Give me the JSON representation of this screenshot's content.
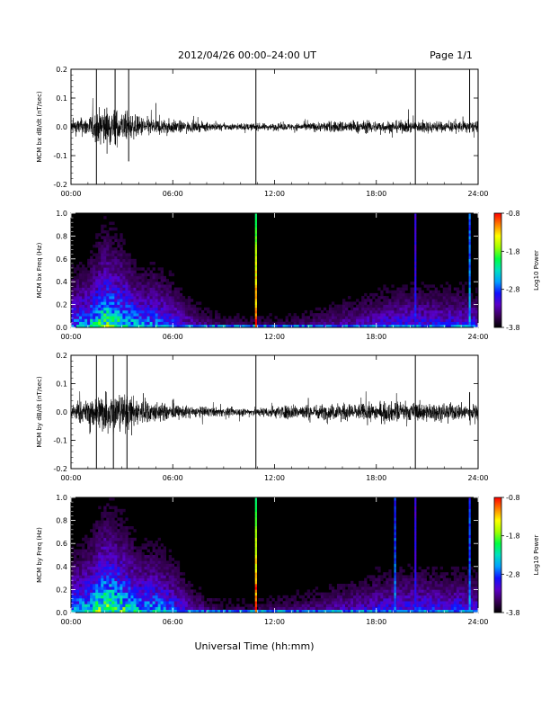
{
  "header": {
    "title": "2012/04/26  00:00–24:00 UT",
    "page": "Page 1/1"
  },
  "xlabel": "Universal Time (hh:mm)",
  "colorbar_colors": [
    "#000000",
    "#3a005a",
    "#5a00c8",
    "#1010ff",
    "#00a0ff",
    "#00e0c0",
    "#00ff40",
    "#a0ff00",
    "#ffff00",
    "#ff8000",
    "#ff0000"
  ],
  "chart_data": [
    {
      "type": "line",
      "ylabel": "MCM bx dB/dt (nT/sec)",
      "x_ticks": [
        "00:00",
        "06:00",
        "12:00",
        "18:00",
        "24:00"
      ],
      "y_ticks": [
        "-0.2",
        "-0.1",
        "0.0",
        "0.1",
        "0.2"
      ],
      "ylim": [
        -0.2,
        0.2
      ],
      "xlim_hours": [
        0,
        24
      ],
      "envelope_hours": [
        0,
        1,
        2,
        3,
        4,
        5,
        6,
        7,
        8,
        9,
        10,
        11,
        12,
        13,
        14,
        15,
        16,
        17,
        18,
        19,
        20,
        21,
        22,
        23,
        24
      ],
      "envelope_amplitude": [
        0.04,
        0.06,
        0.12,
        0.09,
        0.06,
        0.05,
        0.04,
        0.03,
        0.025,
        0.02,
        0.02,
        0.02,
        0.02,
        0.02,
        0.025,
        0.03,
        0.035,
        0.035,
        0.035,
        0.035,
        0.035,
        0.035,
        0.03,
        0.035,
        0.03
      ],
      "spikes": [
        {
          "t": 1.5,
          "ymin": -0.2,
          "ymax": 0.2
        },
        {
          "t": 2.6,
          "ymin": -0.06,
          "ymax": 0.2
        },
        {
          "t": 3.4,
          "ymin": -0.12,
          "ymax": 0.2
        },
        {
          "t": 10.9,
          "ymin": -0.2,
          "ymax": 0.2
        },
        {
          "t": 20.3,
          "ymin": -0.2,
          "ymax": 0.2
        },
        {
          "t": 23.5,
          "ymin": -0.02,
          "ymax": 0.2
        }
      ]
    },
    {
      "type": "heatmap",
      "ylabel": "MCM bx Freq (Hz)",
      "x_ticks": [
        "00:00",
        "06:00",
        "12:00",
        "18:00",
        "24:00"
      ],
      "y_ticks": [
        "0.0",
        "0.2",
        "0.4",
        "0.6",
        "0.8",
        "1.0"
      ],
      "ylim": [
        0,
        1.0
      ],
      "xlim_hours": [
        0,
        24
      ],
      "colorbar": {
        "label": "Log10 Power",
        "ticks": [
          "-0.8",
          "-1.8",
          "-2.8",
          "-3.8"
        ],
        "range": [
          -3.8,
          -0.8
        ]
      },
      "activity_hours": [
        0,
        1,
        2,
        3,
        4,
        5,
        6,
        7,
        8,
        9,
        10,
        11,
        12,
        13,
        14,
        15,
        16,
        17,
        18,
        19,
        20,
        21,
        22,
        23,
        24
      ],
      "activity_level": [
        0.5,
        0.6,
        0.85,
        0.75,
        0.55,
        0.55,
        0.45,
        0.3,
        0.2,
        0.15,
        0.15,
        0.15,
        0.15,
        0.15,
        0.18,
        0.22,
        0.28,
        0.3,
        0.35,
        0.38,
        0.4,
        0.4,
        0.38,
        0.4,
        0.35
      ],
      "vertical_lines": [
        {
          "t": 10.9,
          "power": -0.8
        },
        {
          "t": 20.3,
          "power": -2.9
        },
        {
          "t": 23.5,
          "power": -2.5
        }
      ]
    },
    {
      "type": "line",
      "ylabel": "MCM by dB/dt (nT/sec)",
      "x_ticks": [
        "00:00",
        "06:00",
        "12:00",
        "18:00",
        "24:00"
      ],
      "y_ticks": [
        "-0.2",
        "-0.1",
        "0.0",
        "0.1",
        "0.2"
      ],
      "ylim": [
        -0.2,
        0.2
      ],
      "xlim_hours": [
        0,
        24
      ],
      "envelope_hours": [
        0,
        1,
        2,
        3,
        4,
        5,
        6,
        7,
        8,
        9,
        10,
        11,
        12,
        13,
        14,
        15,
        16,
        17,
        18,
        19,
        20,
        21,
        22,
        23,
        24
      ],
      "envelope_amplitude": [
        0.05,
        0.07,
        0.13,
        0.11,
        0.08,
        0.06,
        0.04,
        0.035,
        0.03,
        0.025,
        0.025,
        0.025,
        0.035,
        0.045,
        0.045,
        0.045,
        0.05,
        0.05,
        0.055,
        0.06,
        0.055,
        0.055,
        0.05,
        0.05,
        0.045
      ],
      "spikes": [
        {
          "t": 1.5,
          "ymin": -0.2,
          "ymax": 0.2
        },
        {
          "t": 2.5,
          "ymin": -0.2,
          "ymax": 0.2
        },
        {
          "t": 3.3,
          "ymin": -0.2,
          "ymax": 0.2
        },
        {
          "t": 10.9,
          "ymin": -0.2,
          "ymax": 0.2
        },
        {
          "t": 20.3,
          "ymin": -0.2,
          "ymax": 0.2
        },
        {
          "t": 23.5,
          "ymin": -0.03,
          "ymax": 0.07
        }
      ]
    },
    {
      "type": "heatmap",
      "ylabel": "MCM by Freq (Hz)",
      "x_ticks": [
        "00:00",
        "06:00",
        "12:00",
        "18:00",
        "24:00"
      ],
      "y_ticks": [
        "0.0",
        "0.2",
        "0.4",
        "0.6",
        "0.8",
        "1.0"
      ],
      "ylim": [
        0,
        1.0
      ],
      "xlim_hours": [
        0,
        24
      ],
      "colorbar": {
        "label": "Log10 Power",
        "ticks": [
          "-0.8",
          "-1.8",
          "-2.8",
          "-3.8"
        ],
        "range": [
          -3.8,
          -0.8
        ]
      },
      "activity_hours": [
        0,
        1,
        2,
        3,
        4,
        5,
        6,
        7,
        8,
        9,
        10,
        11,
        12,
        13,
        14,
        15,
        16,
        17,
        18,
        19,
        20,
        21,
        22,
        23,
        24
      ],
      "activity_level": [
        0.55,
        0.65,
        0.9,
        0.8,
        0.6,
        0.6,
        0.5,
        0.3,
        0.2,
        0.15,
        0.15,
        0.15,
        0.18,
        0.2,
        0.22,
        0.25,
        0.3,
        0.32,
        0.38,
        0.4,
        0.42,
        0.42,
        0.4,
        0.42,
        0.38
      ],
      "vertical_lines": [
        {
          "t": 10.9,
          "power": -0.8
        },
        {
          "t": 19.1,
          "power": -2.6
        },
        {
          "t": 20.3,
          "power": -2.9
        },
        {
          "t": 23.5,
          "power": -2.6
        }
      ]
    }
  ]
}
